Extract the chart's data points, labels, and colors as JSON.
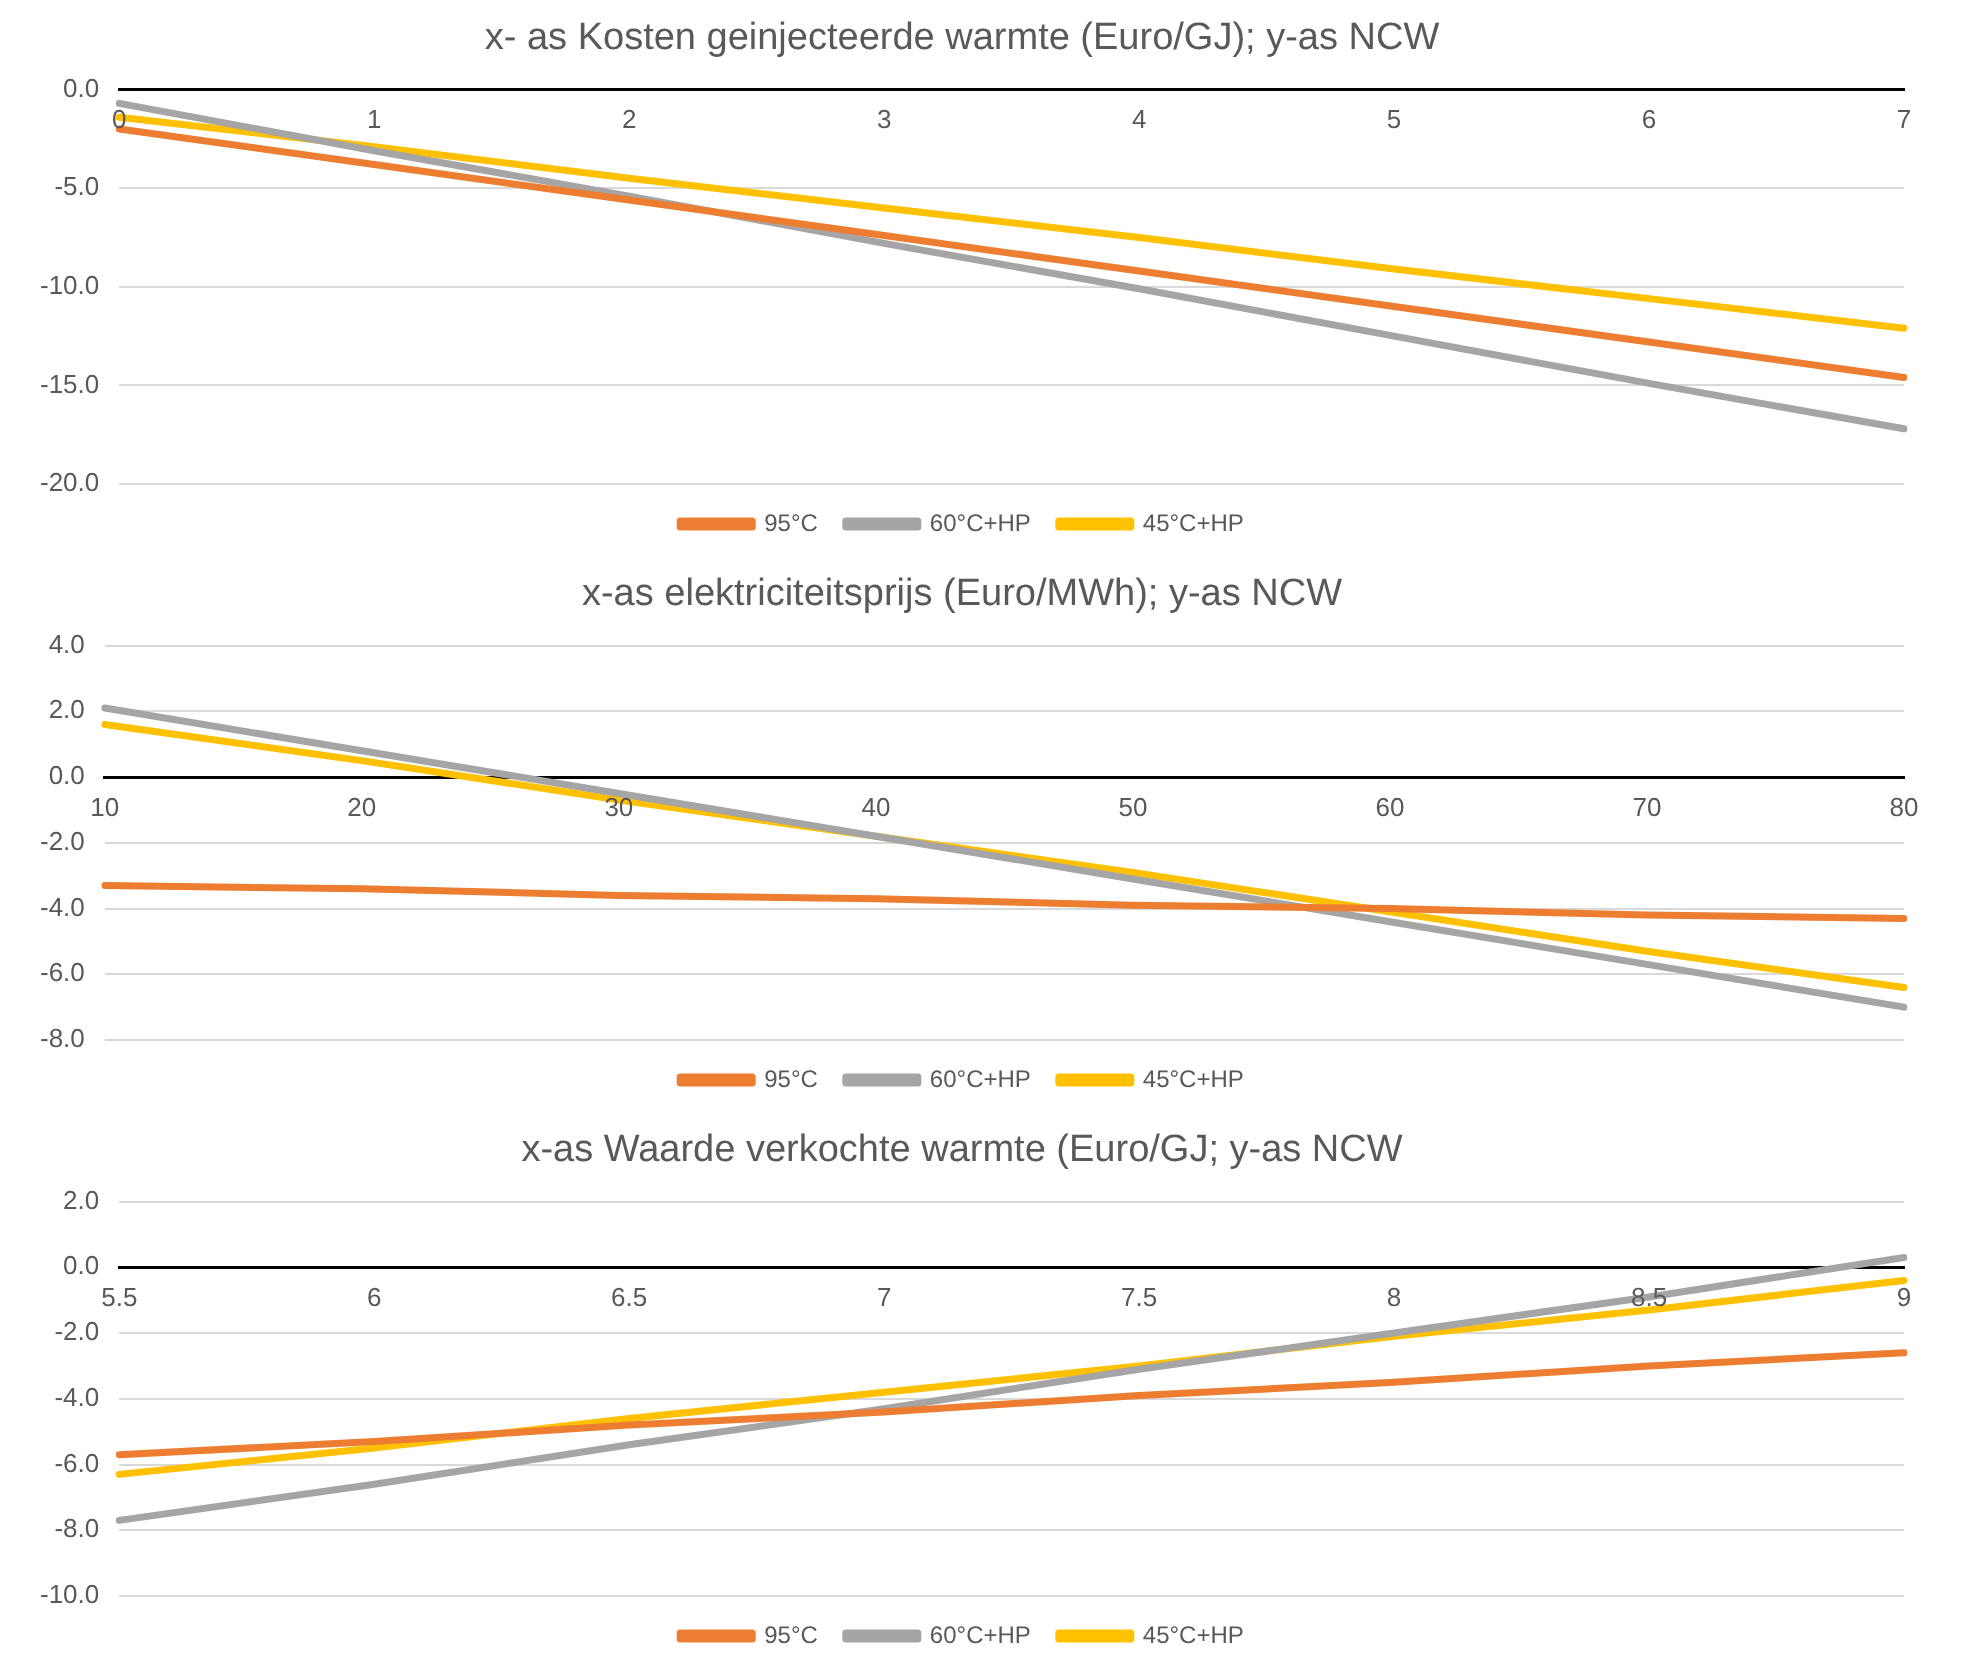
{
  "chart_data": [
    {
      "type": "line",
      "title": "x- as Kosten geinjecteerde warmte (Euro/GJ); y-as NCW",
      "categories": [
        "0",
        "1",
        "2",
        "3",
        "4",
        "5",
        "6",
        "7"
      ],
      "series": [
        {
          "name": "95°C",
          "color": "#ed7d31",
          "values": [
            -2.0,
            -3.8,
            -5.6,
            -7.4,
            -9.2,
            -11.0,
            -12.8,
            -14.6
          ]
        },
        {
          "name": "60°C+HP",
          "color": "#a5a5a5",
          "values": [
            -0.7,
            -3.1,
            -5.4,
            -7.8,
            -10.1,
            -12.5,
            -14.9,
            -17.2
          ]
        },
        {
          "name": "45°C+HP",
          "color": "#ffc000",
          "values": [
            -1.4,
            -2.9,
            -4.5,
            -6.0,
            -7.5,
            -9.1,
            -10.6,
            -12.1
          ]
        }
      ],
      "ylim": [
        -20,
        0
      ],
      "yticks": [
        {
          "value": -20,
          "label": "-20.0"
        },
        {
          "value": -15,
          "label": "-15.0"
        },
        {
          "value": -10,
          "label": "-10.0"
        },
        {
          "value": -5,
          "label": "-5.0"
        },
        {
          "value": 0,
          "label": "0.0"
        }
      ],
      "grid": "y",
      "legend": "bottom",
      "marker": "none"
    },
    {
      "type": "line",
      "title": "x-as elektriciteitsprijs (Euro/MWh); y-as NCW",
      "categories": [
        "10",
        "20",
        "30",
        "40",
        "50",
        "60",
        "70",
        "80"
      ],
      "series": [
        {
          "name": "95°C",
          "color": "#ed7d31",
          "values": [
            -3.3,
            -3.4,
            -3.6,
            -3.7,
            -3.9,
            -4.0,
            -4.2,
            -4.3
          ]
        },
        {
          "name": "60°C+HP",
          "color": "#a5a5a5",
          "values": [
            2.1,
            0.8,
            -0.5,
            -1.8,
            -3.1,
            -4.4,
            -5.7,
            -7.0
          ]
        },
        {
          "name": "45°C+HP",
          "color": "#ffc000",
          "values": [
            1.6,
            0.5,
            -0.7,
            -1.8,
            -2.9,
            -4.1,
            -5.3,
            -6.4
          ]
        }
      ],
      "ylim": [
        -8,
        4
      ],
      "yticks": [
        {
          "value": -8,
          "label": "-8.0"
        },
        {
          "value": -6,
          "label": "-6.0"
        },
        {
          "value": -4,
          "label": "-4.0"
        },
        {
          "value": -2,
          "label": "-2.0"
        },
        {
          "value": 0,
          "label": "0.0"
        },
        {
          "value": 2,
          "label": "2.0"
        },
        {
          "value": 4,
          "label": "4.0"
        }
      ],
      "grid": "y",
      "legend": "bottom",
      "marker": "none"
    },
    {
      "type": "line",
      "title": "x-as Waarde verkochte warmte (Euro/GJ; y-as NCW",
      "categories": [
        "5.5",
        "6",
        "6.5",
        "7",
        "7.5",
        "8",
        "8.5",
        "9"
      ],
      "series": [
        {
          "name": "95°C",
          "color": "#ed7d31",
          "values": [
            -5.7,
            -5.3,
            -4.8,
            -4.4,
            -3.9,
            -3.5,
            -3.0,
            -2.6
          ]
        },
        {
          "name": "60°C+HP",
          "color": "#a5a5a5",
          "values": [
            -7.7,
            -6.6,
            -5.4,
            -4.3,
            -3.1,
            -2.0,
            -0.9,
            0.3
          ]
        },
        {
          "name": "45°C+HP",
          "color": "#ffc000",
          "values": [
            -6.3,
            -5.5,
            -4.6,
            -3.8,
            -3.0,
            -2.1,
            -1.3,
            -0.4
          ]
        }
      ],
      "ylim": [
        -10,
        2
      ],
      "yticks": [
        {
          "value": -10,
          "label": "-10.0"
        },
        {
          "value": -8,
          "label": "-8.0"
        },
        {
          "value": -6,
          "label": "-6.0"
        },
        {
          "value": -4,
          "label": "-4.0"
        },
        {
          "value": -2,
          "label": "-2.0"
        },
        {
          "value": 0,
          "label": "0.0"
        },
        {
          "value": 2,
          "label": "2.0"
        }
      ],
      "grid": "y",
      "legend": "bottom",
      "marker": "none"
    }
  ]
}
